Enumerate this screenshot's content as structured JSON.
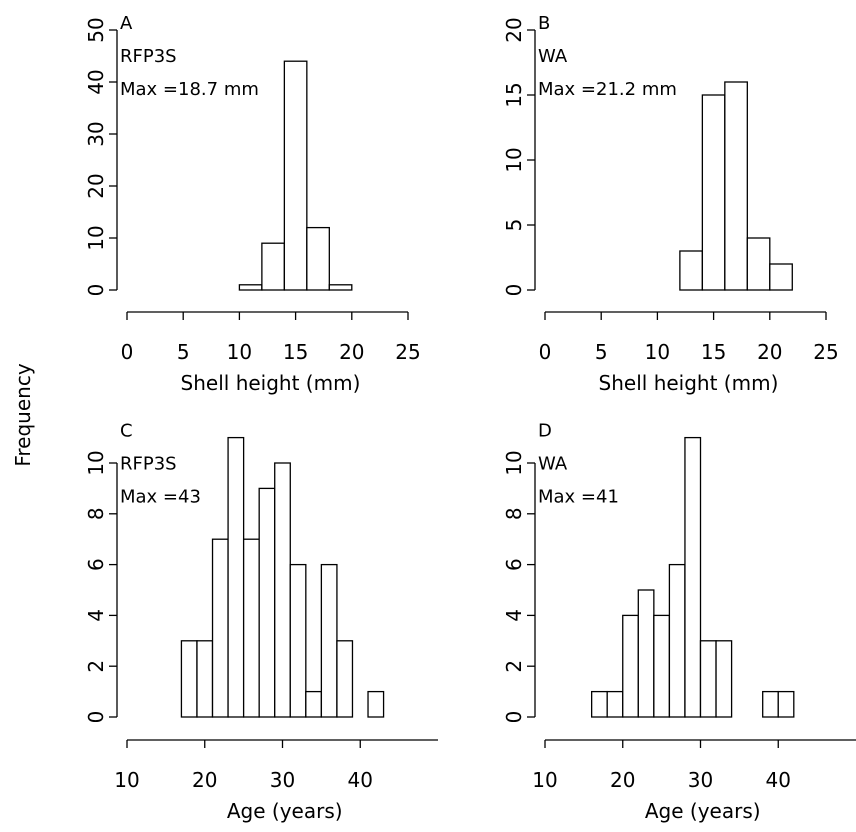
{
  "ylabel": "Frequency",
  "chart_data": [
    {
      "type": "histogram",
      "annotations": [
        "A",
        "RFP3S",
        "Max =18.7 mm"
      ],
      "xlabel": "Shell height (mm)",
      "bins": [
        10,
        12,
        14,
        16,
        18,
        20,
        22,
        24
      ],
      "values": [
        1,
        9,
        44,
        12,
        1,
        0,
        0
      ],
      "color": "#ffffff",
      "xlim": [
        0,
        25
      ],
      "xticks": [
        0,
        5,
        10,
        15,
        20,
        25
      ],
      "ylim": [
        0,
        50
      ],
      "yticks": [
        0,
        10,
        20,
        30,
        40,
        50
      ]
    },
    {
      "type": "histogram",
      "annotations": [
        "B",
        "WA",
        "Max =21.2 mm"
      ],
      "xlabel": "Shell height (mm)",
      "bins": [
        12,
        14,
        16,
        18,
        20,
        22,
        24
      ],
      "values": [
        3,
        15,
        16,
        4,
        2,
        0
      ],
      "color": "#ffffff",
      "xlim": [
        0,
        25
      ],
      "xticks": [
        0,
        5,
        10,
        15,
        20,
        25
      ],
      "ylim": [
        0,
        20
      ],
      "yticks": [
        0,
        5,
        10,
        15,
        20
      ]
    },
    {
      "type": "histogram",
      "annotations": [
        "C",
        "RFP3S",
        "Max =43"
      ],
      "xlabel": "Age (years)",
      "bins": [
        15,
        17,
        19,
        21,
        23,
        25,
        27,
        29,
        31,
        33,
        35,
        37,
        39,
        41,
        43
      ],
      "values": [
        0,
        3,
        3,
        7,
        11,
        7,
        9,
        10,
        6,
        1,
        6,
        3,
        0,
        1
      ],
      "color": "#ffffff",
      "xlim": [
        10,
        50
      ],
      "xticks": [
        10,
        20,
        30,
        40
      ],
      "ylim": [
        0,
        11
      ],
      "yticks": [
        0,
        2,
        4,
        6,
        8,
        10
      ]
    },
    {
      "type": "histogram",
      "annotations": [
        "D",
        "WA",
        "Max =41"
      ],
      "xlabel": "Age (years)",
      "bins": [
        12,
        14,
        16,
        18,
        20,
        22,
        24,
        26,
        28,
        30,
        32,
        34,
        36,
        38,
        40,
        42,
        44
      ],
      "values": [
        0,
        0,
        1,
        1,
        4,
        5,
        4,
        6,
        11,
        3,
        3,
        0,
        0,
        1,
        1,
        0
      ],
      "color": "#ffffff",
      "xlim": [
        10,
        50
      ],
      "xticks": [
        10,
        20,
        30,
        40
      ],
      "ylim": [
        0,
        11
      ],
      "yticks": [
        0,
        2,
        4,
        6,
        8,
        10
      ]
    }
  ]
}
